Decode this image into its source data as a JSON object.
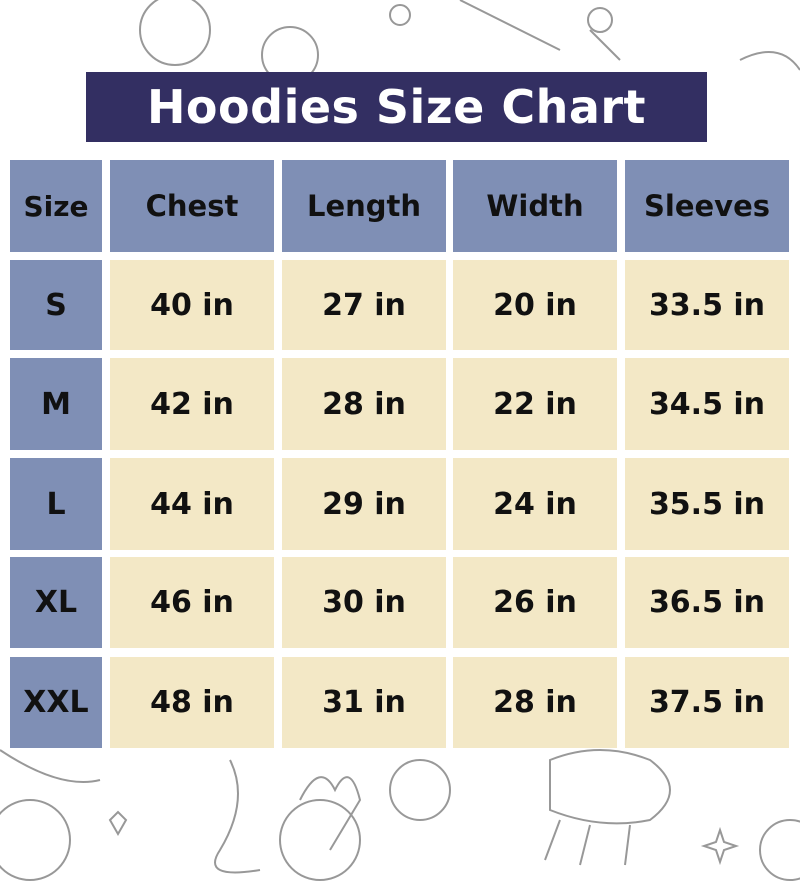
{
  "title": "Hoodies Size Chart",
  "colors": {
    "title_bg": "#332f62",
    "header_bg": "#7f8fb5",
    "value_bg": "#f3e8c6"
  },
  "chart_data": {
    "type": "table",
    "title": "Hoodies Size Chart",
    "columns": [
      "Size",
      "Chest",
      "Length",
      "Width",
      "Sleeves"
    ],
    "rows": [
      [
        "S",
        "40 in",
        "27 in",
        "20 in",
        "33.5 in"
      ],
      [
        "M",
        "42 in",
        "28 in",
        "22 in",
        "34.5 in"
      ],
      [
        "L",
        "44 in",
        "29 in",
        "24 in",
        "35.5 in"
      ],
      [
        "XL",
        "46 in",
        "30 in",
        "26 in",
        "36.5 in"
      ],
      [
        "XXL",
        "48 in",
        "31 in",
        "28 in",
        "37.5 in"
      ]
    ]
  }
}
